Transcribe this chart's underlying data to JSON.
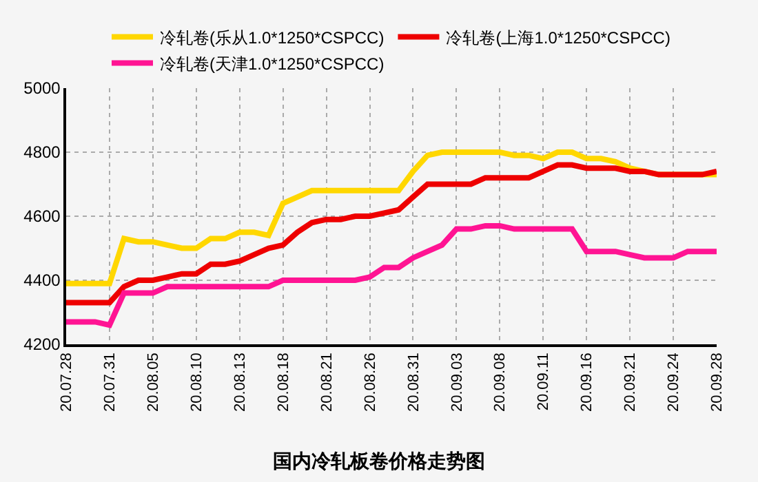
{
  "chart_data": {
    "type": "line",
    "title": "国内冷轧板卷价格走势图",
    "categories": [
      "20.07.28",
      null,
      null,
      "20.07.31",
      null,
      null,
      "20.08.05",
      null,
      null,
      "20.08.10",
      null,
      null,
      "20.08.13",
      null,
      null,
      "20.08.18",
      null,
      null,
      "20.08.21",
      null,
      null,
      "20.08.26",
      null,
      null,
      "20.08.31",
      null,
      null,
      "20.09.03",
      null,
      null,
      "20.09.08",
      null,
      null,
      "20.09.11",
      null,
      null,
      "20.09.16",
      null,
      null,
      "20.09.21",
      null,
      null,
      "20.09.24",
      null,
      null,
      "20.09.28"
    ],
    "series": [
      {
        "name": "冷轧卷(乐从1.0*1250*CSPCC)",
        "color": "#ffd700",
        "values": [
          4390,
          4390,
          4390,
          4390,
          4530,
          4520,
          4520,
          4510,
          4500,
          4500,
          4530,
          4530,
          4550,
          4550,
          4540,
          4640,
          4660,
          4680,
          4680,
          4680,
          4680,
          4680,
          4680,
          4680,
          4740,
          4790,
          4800,
          4800,
          4800,
          4800,
          4800,
          4790,
          4790,
          4780,
          4800,
          4800,
          4780,
          4780,
          4770,
          4750,
          4740,
          4730,
          4730,
          4730,
          4730,
          4730
        ]
      },
      {
        "name": "冷轧卷(上海1.0*1250*CSPCC)",
        "color": "#ee0000",
        "values": [
          4330,
          4330,
          4330,
          4330,
          4380,
          4400,
          4400,
          4410,
          4420,
          4420,
          4450,
          4450,
          4460,
          4480,
          4500,
          4510,
          4550,
          4580,
          4590,
          4590,
          4600,
          4600,
          4610,
          4620,
          4660,
          4700,
          4700,
          4700,
          4700,
          4720,
          4720,
          4720,
          4720,
          4740,
          4760,
          4760,
          4750,
          4750,
          4750,
          4740,
          4740,
          4730,
          4730,
          4730,
          4730,
          4740
        ]
      },
      {
        "name": "冷轧卷(天津1.0*1250*CSPCC)",
        "color": "#ff1493",
        "values": [
          4270,
          4270,
          4270,
          4260,
          4360,
          4360,
          4360,
          4380,
          4380,
          4380,
          4380,
          4380,
          4380,
          4380,
          4380,
          4400,
          4400,
          4400,
          4400,
          4400,
          4400,
          4410,
          4440,
          4440,
          4470,
          4490,
          4510,
          4560,
          4560,
          4570,
          4570,
          4560,
          4560,
          4560,
          4560,
          4560,
          4490,
          4490,
          4490,
          4480,
          4470,
          4470,
          4470,
          4490,
          4490,
          4490
        ]
      }
    ],
    "ylim": [
      4200,
      5000
    ],
    "yticks": [
      4200,
      4400,
      4600,
      4800,
      5000
    ],
    "grid": true,
    "legend": "top",
    "marker": "none",
    "line_style": "solid"
  }
}
